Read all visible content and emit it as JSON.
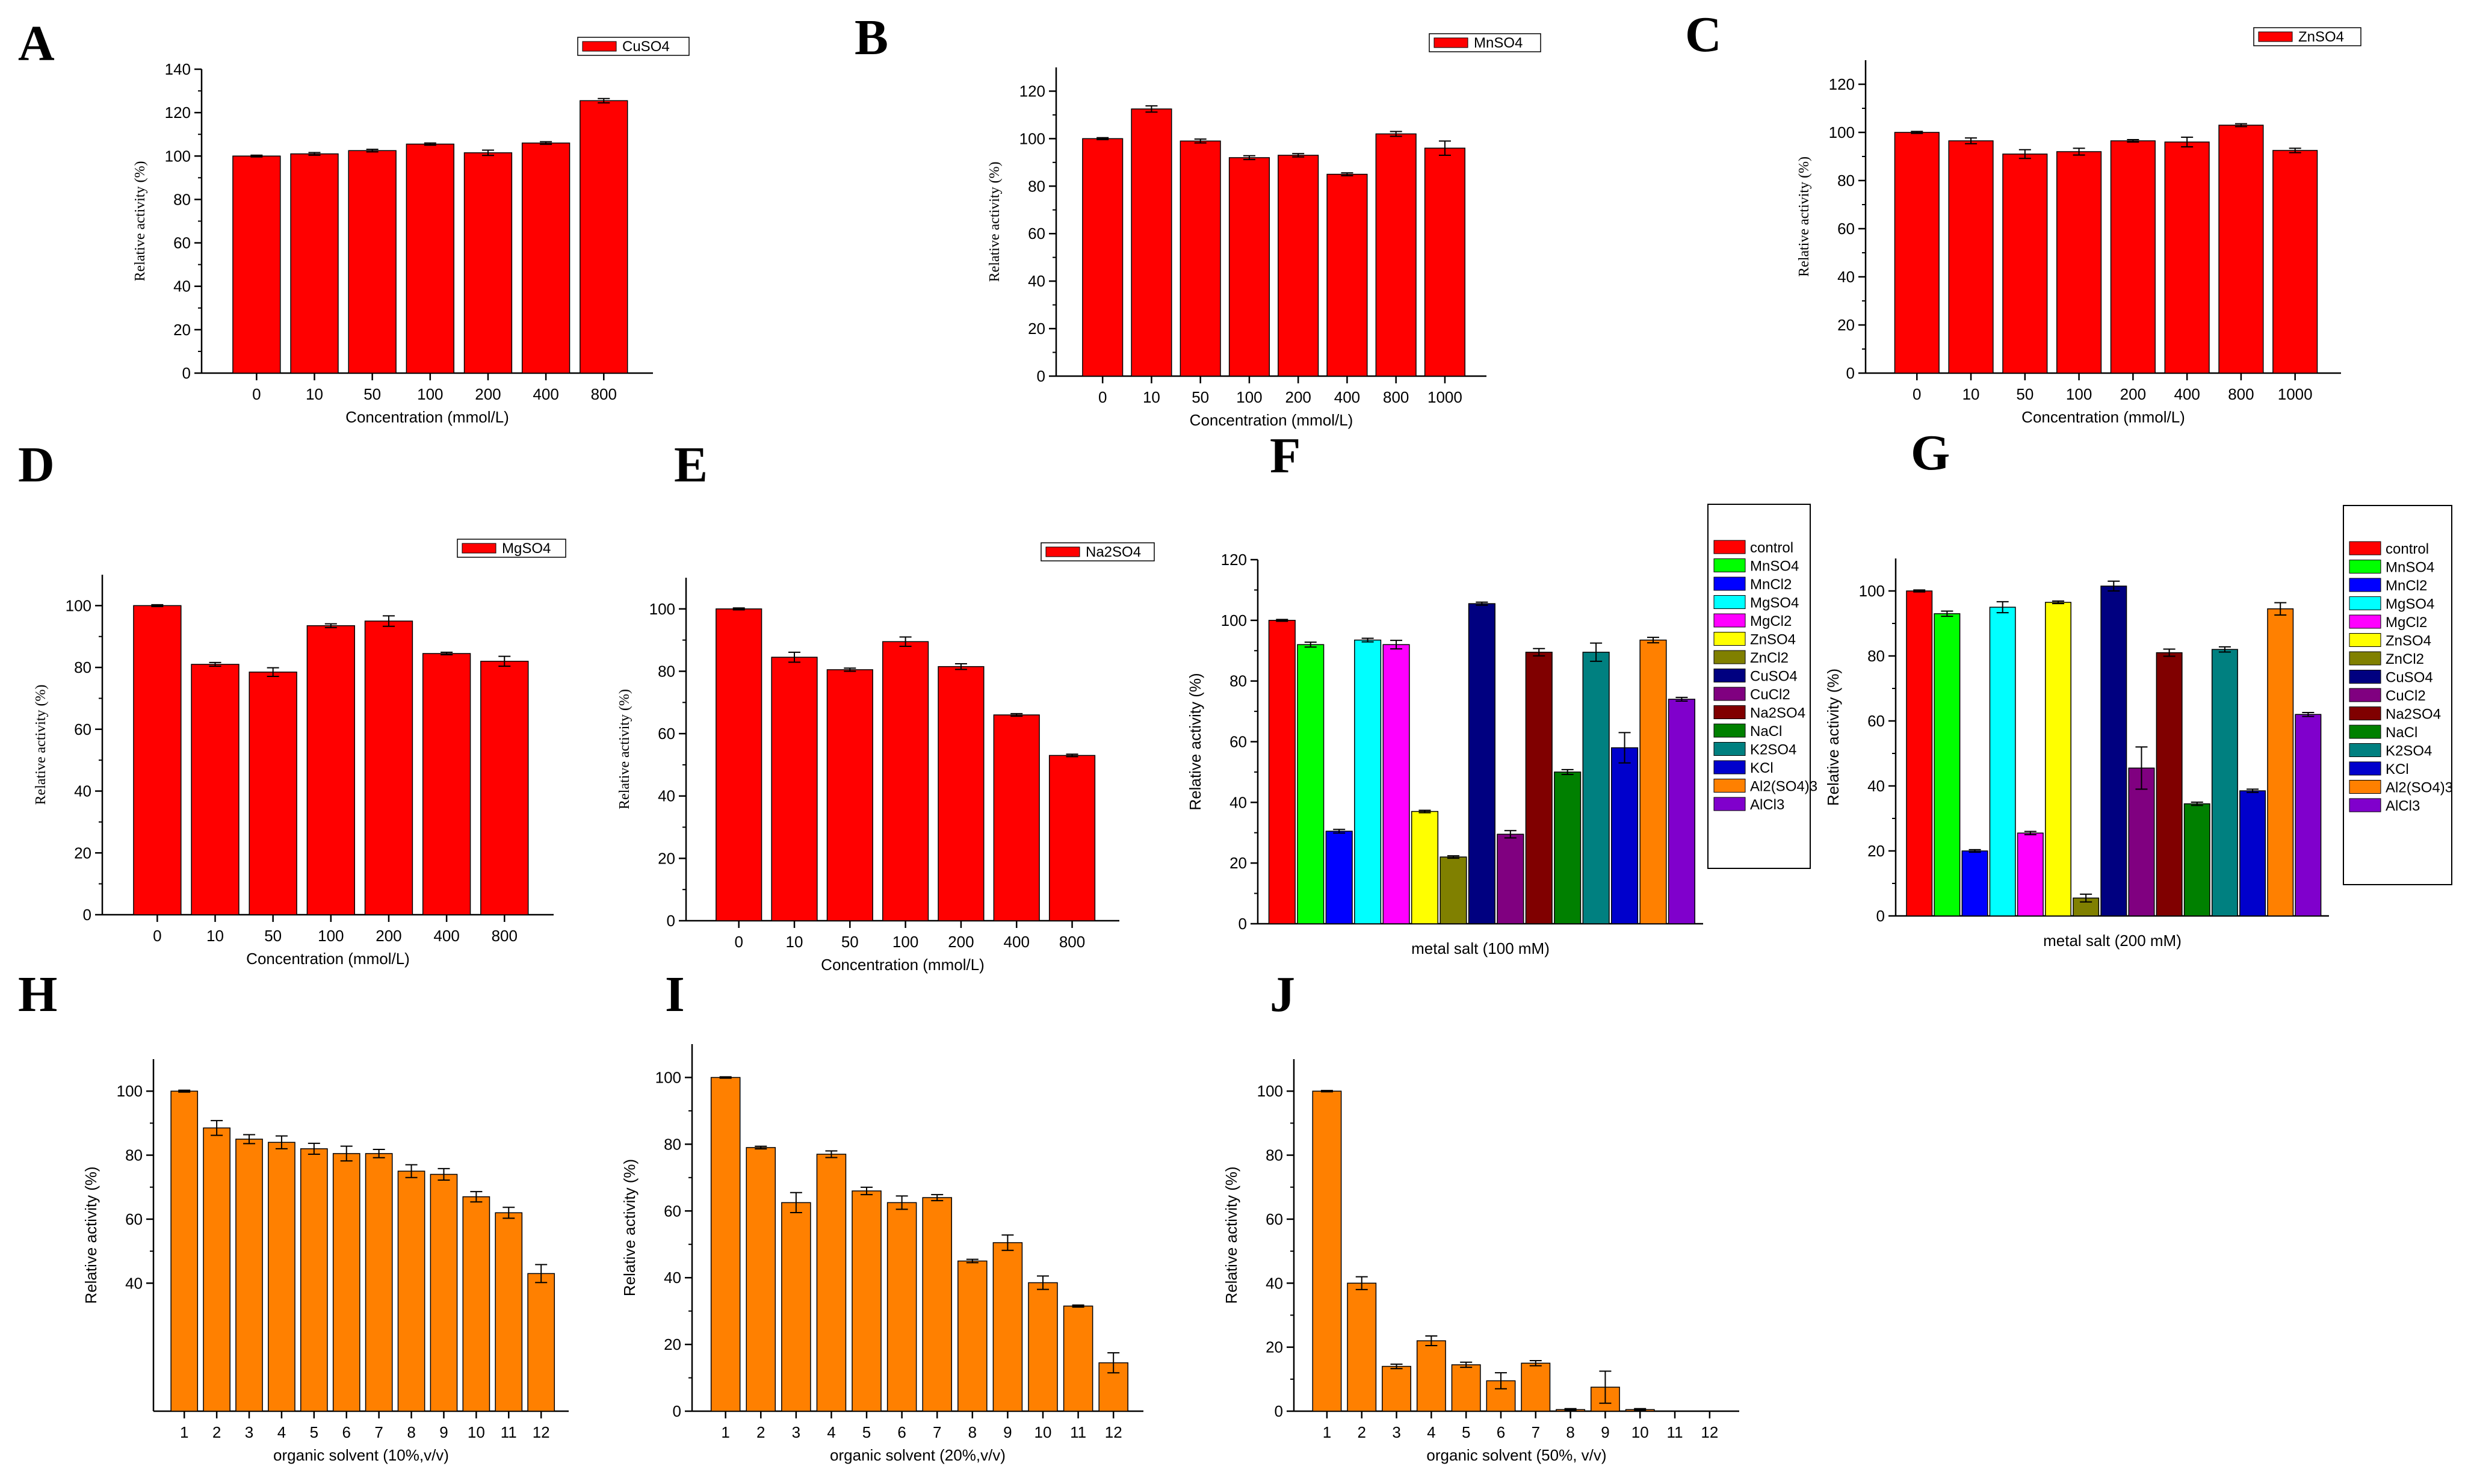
{
  "colors": {
    "red": "#ff0000",
    "orange": "#ff8000",
    "metal_palette": [
      "#ff0000",
      "#00ff00",
      "#0000ff",
      "#00ffff",
      "#ff00ff",
      "#ffff00",
      "#808000",
      "#000080",
      "#800080",
      "#800000",
      "#008000",
      "#008080",
      "#0000cc",
      "#ff8000",
      "#8000cc"
    ]
  },
  "chart_data": [
    {
      "id": "A",
      "letter": "A",
      "type": "bar",
      "style": "single-red",
      "legend": "CuSO4",
      "categories": [
        "0",
        "10",
        "50",
        "100",
        "200",
        "400",
        "800"
      ],
      "values": [
        100,
        101,
        102.5,
        105.5,
        101.5,
        106,
        125.5
      ],
      "errors": [
        0.4,
        0.6,
        0.6,
        0.5,
        1.2,
        0.6,
        1.0
      ],
      "ylim": [
        0,
        140
      ],
      "yticks": [
        0,
        20,
        40,
        60,
        80,
        100,
        120,
        140
      ],
      "xlabel": "Concentration (mmol/L)",
      "ylabel": "Relative activity (%)"
    },
    {
      "id": "B",
      "letter": "B",
      "type": "bar",
      "style": "single-red",
      "legend": "MnSO4",
      "categories": [
        "0",
        "10",
        "50",
        "100",
        "200",
        "400",
        "800",
        "1000"
      ],
      "values": [
        100,
        112.5,
        99,
        92,
        93,
        85,
        102,
        96
      ],
      "errors": [
        0.4,
        1.3,
        0.8,
        0.8,
        0.7,
        0.6,
        1.0,
        3.0
      ],
      "ylim": [
        0,
        130
      ],
      "yticks": [
        0,
        20,
        40,
        60,
        80,
        100,
        120
      ],
      "xlabel": "Concentration (mmol/L)",
      "ylabel": "Relative activity (%)"
    },
    {
      "id": "C",
      "letter": "C",
      "type": "bar",
      "style": "single-red",
      "legend": "ZnSO4",
      "categories": [
        "0",
        "10",
        "50",
        "100",
        "200",
        "400",
        "800",
        "1000"
      ],
      "values": [
        100,
        96.5,
        91,
        92,
        96.5,
        96,
        103,
        92.5
      ],
      "errors": [
        0.4,
        1.2,
        1.8,
        1.4,
        0.5,
        2.0,
        0.6,
        0.9
      ],
      "ylim": [
        0,
        130
      ],
      "yticks": [
        0,
        20,
        40,
        60,
        80,
        100,
        120
      ],
      "xlabel": "Concentration (mmol/L)",
      "ylabel": "Relative activity (%)"
    },
    {
      "id": "D",
      "letter": "D",
      "type": "bar",
      "style": "single-red",
      "legend": "MgSO4",
      "categories": [
        "0",
        "10",
        "50",
        "100",
        "200",
        "400",
        "800"
      ],
      "values": [
        100,
        81,
        78.5,
        93.5,
        95,
        84.5,
        82
      ],
      "errors": [
        0.3,
        0.6,
        1.4,
        0.6,
        1.7,
        0.4,
        1.6
      ],
      "ylim": [
        0,
        110
      ],
      "yticks": [
        0,
        20,
        40,
        60,
        80,
        100
      ],
      "xlabel": "Concentration (mmol/L)",
      "ylabel": "Relative activity (%)"
    },
    {
      "id": "E",
      "letter": "E",
      "type": "bar",
      "style": "single-red",
      "legend": "Na2SO4",
      "categories": [
        "0",
        "10",
        "50",
        "100",
        "200",
        "400",
        "800"
      ],
      "values": [
        100,
        84.5,
        80.5,
        89.5,
        81.5,
        66,
        53
      ],
      "errors": [
        0.3,
        1.6,
        0.5,
        1.5,
        0.9,
        0.4,
        0.4
      ],
      "ylim": [
        0,
        110
      ],
      "yticks": [
        0,
        20,
        40,
        60,
        80,
        100
      ],
      "xlabel": "Concentration (mmol/L)",
      "ylabel": "Relative activity (%)"
    },
    {
      "id": "F",
      "letter": "F",
      "type": "bar",
      "style": "multi-color",
      "categories": [
        "control",
        "MnSO4",
        "MnCl2",
        "MgSO4",
        "MgCl2",
        "ZnSO4",
        "ZnCl2",
        "CuSO4",
        "CuCl2",
        "Na2SO4",
        "NaCl",
        "K2SO4",
        "KCl",
        "Al2(SO4)3",
        "AlCl3"
      ],
      "values": [
        100,
        92,
        30.5,
        93.5,
        92,
        37,
        22,
        105.5,
        29.5,
        89.5,
        50,
        89.5,
        58,
        93.5,
        74
      ],
      "errors": [
        0.3,
        0.8,
        0.6,
        0.6,
        1.4,
        0.4,
        0.4,
        0.5,
        1.2,
        1.2,
        0.8,
        3.0,
        5.0,
        0.9,
        0.6
      ],
      "ylim": [
        0,
        120
      ],
      "yticks": [
        0,
        20,
        40,
        60,
        80,
        100,
        120
      ],
      "xlabel": "metal salt (100 mM)",
      "ylabel": "Relative activity (%)"
    },
    {
      "id": "G",
      "letter": "G",
      "type": "bar",
      "style": "multi-color",
      "categories": [
        "control",
        "MnSO4",
        "MnCl2",
        "MgSO4",
        "MgCl2",
        "ZnSO4",
        "ZnCl2",
        "CuSO4",
        "CuCl2",
        "Na2SO4",
        "NaCl",
        "K2SO4",
        "KCl",
        "Al2(SO4)3",
        "AlCl3"
      ],
      "values": [
        100,
        93,
        20,
        95,
        25.5,
        96.5,
        5.5,
        101.5,
        45.5,
        81,
        34.5,
        82,
        38.5,
        94.5,
        62
      ],
      "errors": [
        0.3,
        0.8,
        0.4,
        1.7,
        0.5,
        0.4,
        1.2,
        1.5,
        6.5,
        1.1,
        0.5,
        0.8,
        0.5,
        1.9,
        0.6
      ],
      "ylim": [
        0,
        110
      ],
      "yticks": [
        0,
        20,
        40,
        60,
        80,
        100
      ],
      "xlabel": "metal salt (200 mM)",
      "ylabel": "Relative activity (%)"
    },
    {
      "id": "H",
      "letter": "H",
      "type": "bar",
      "style": "single-orange",
      "categories": [
        "1",
        "2",
        "3",
        "4",
        "5",
        "6",
        "7",
        "8",
        "9",
        "10",
        "11",
        "12"
      ],
      "values": [
        100,
        88.5,
        85,
        84,
        82,
        80.5,
        80.5,
        75,
        74,
        67,
        62,
        43
      ],
      "errors": [
        0.3,
        2.3,
        1.4,
        2.0,
        1.7,
        2.3,
        1.3,
        2.0,
        1.8,
        1.6,
        1.7,
        2.8
      ],
      "ylim": [
        0,
        110
      ],
      "yticks": [
        40,
        60,
        80,
        100
      ],
      "xlabel": "organic solvent (10%,v/v)",
      "ylabel": "Relative activity (%)"
    },
    {
      "id": "I",
      "letter": "I",
      "type": "bar",
      "style": "single-orange",
      "categories": [
        "1",
        "2",
        "3",
        "4",
        "5",
        "6",
        "7",
        "8",
        "9",
        "10",
        "11",
        "12"
      ],
      "values": [
        100,
        79,
        62.5,
        77,
        66,
        62.5,
        64,
        45,
        50.5,
        38.5,
        31.5,
        14.5
      ],
      "errors": [
        0.2,
        0.4,
        3.0,
        1.0,
        1.1,
        2.0,
        0.9,
        0.5,
        2.3,
        2.0,
        0.3,
        3.0
      ],
      "ylim": [
        0,
        110
      ],
      "yticks": [
        0,
        20,
        40,
        60,
        80,
        100
      ],
      "xlabel": "organic solvent (20%,v/v)",
      "ylabel": "Relative activity (%)"
    },
    {
      "id": "J",
      "letter": "J",
      "type": "bar",
      "style": "single-orange",
      "categories": [
        "1",
        "2",
        "3",
        "4",
        "5",
        "6",
        "7",
        "8",
        "9",
        "10",
        "11",
        "12"
      ],
      "values": [
        100,
        40,
        14,
        22,
        14.5,
        9.5,
        15,
        0.5,
        7.5,
        0.5,
        0,
        0
      ],
      "errors": [
        0.2,
        2.0,
        0.7,
        1.5,
        0.8,
        2.5,
        0.8,
        0.3,
        5.0,
        0.3,
        0,
        0
      ],
      "ylim": [
        0,
        110
      ],
      "yticks": [
        0,
        20,
        40,
        60,
        80,
        100
      ],
      "xlabel": "organic solvent (50%, v/v)",
      "ylabel": "Relative activity (%)"
    }
  ]
}
